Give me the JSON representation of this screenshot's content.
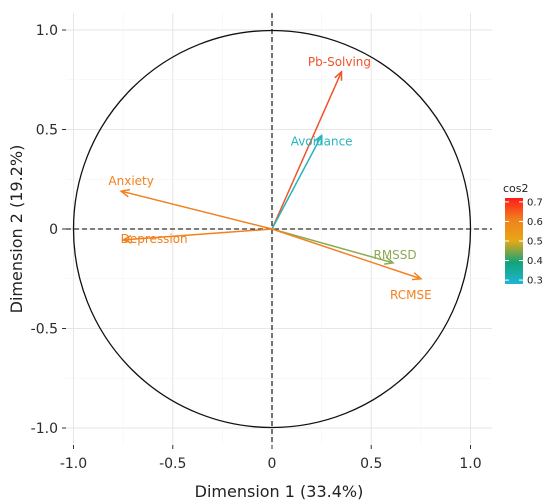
{
  "chart_data": {
    "type": "scatter",
    "subtype": "pca-variable-correlation-circle",
    "xlabel": "Dimension 1 (33.4%)",
    "ylabel": "Dimension 2 (19.2%)",
    "xlim": [
      -1.0,
      1.0
    ],
    "ylim": [
      -1.0,
      1.0
    ],
    "x_ticks": [
      "-1.0",
      "-0.5",
      "0",
      "0.5",
      "1.0"
    ],
    "y_ticks": [
      "-1.0",
      "-0.5",
      "0",
      "0.5",
      "1.0"
    ],
    "grid": true,
    "unit_circle": true,
    "variables": [
      {
        "name": "Pb-Solving",
        "x": 0.35,
        "y": 0.79,
        "cos2": 0.7,
        "color": "#f0532a"
      },
      {
        "name": "Avoidance",
        "x": 0.25,
        "y": 0.47,
        "cos2": 0.3,
        "color": "#26b5bd"
      },
      {
        "name": "Anxiety",
        "x": -0.76,
        "y": 0.19,
        "cos2": 0.56,
        "color": "#f1801d"
      },
      {
        "name": "Depression",
        "x": -0.75,
        "y": -0.055,
        "cos2": 0.55,
        "color": "#f1801d"
      },
      {
        "name": "RMSSD",
        "x": 0.61,
        "y": -0.17,
        "cos2": 0.4,
        "color": "#8bab52"
      },
      {
        "name": "RCMSE",
        "x": 0.75,
        "y": -0.25,
        "cos2": 0.53,
        "color": "#f38322"
      }
    ],
    "legend": {
      "title": "cos2",
      "position": "right",
      "ticks": [
        "0.7",
        "0.6",
        "0.5",
        "0.4",
        "0.3"
      ],
      "tick_values": [
        0.7,
        0.6,
        0.5,
        0.4,
        0.3
      ],
      "gradient_colors": [
        "#ff1a1a",
        "#f1801d",
        "#e6a817",
        "#12a37a",
        "#1fb5d4"
      ]
    }
  }
}
